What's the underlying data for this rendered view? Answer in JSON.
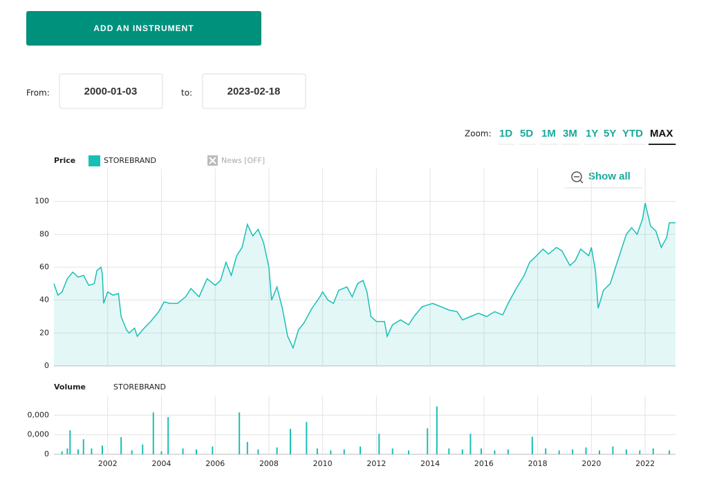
{
  "button": "ADD AN INSTRUMENT",
  "date_range": {
    "from_label": "From:",
    "from": "2000-01-03",
    "to_label": "to:",
    "to": "2023-02-18"
  },
  "zoom": {
    "label": "Zoom:",
    "options": [
      "1D",
      "5D",
      "1M",
      "3M",
      "1Y",
      "5Y",
      "YTD",
      "MAX"
    ],
    "active": 7
  },
  "chart_data": [
    {
      "type": "area",
      "title": "Price",
      "news": "News [OFF]",
      "reset": "Show all",
      "grid": true,
      "series": [
        {
          "name": "STOREBRAND",
          "color": "#17bfb5",
          "values": [
            50,
            43,
            45,
            53,
            57,
            54,
            55,
            49,
            50,
            58,
            60,
            56,
            38,
            45,
            43,
            44,
            30,
            22,
            20,
            23,
            18,
            22,
            27,
            33,
            39,
            38,
            38,
            42,
            47,
            42,
            53,
            49,
            52,
            63,
            55,
            67,
            72,
            86,
            79,
            83,
            75,
            60,
            40,
            48,
            35,
            18,
            11,
            22,
            26,
            35,
            42,
            45,
            40,
            38,
            46,
            48,
            42,
            50,
            52,
            45,
            30,
            27,
            27,
            18,
            25,
            28,
            25,
            30,
            36,
            37,
            38,
            36,
            34,
            33,
            28,
            30,
            32,
            30,
            33,
            31,
            38,
            47,
            55,
            63,
            66,
            71,
            68,
            72,
            70,
            61,
            64,
            71,
            67,
            72,
            58,
            35,
            46,
            50,
            60,
            70,
            80,
            84,
            80,
            89,
            99,
            85,
            82,
            72,
            78,
            87,
            87
          ]
        }
      ],
      "x": [
        2000.0,
        2000.15,
        2000.3,
        2000.5,
        2000.7,
        2000.9,
        2001.1,
        2001.3,
        2001.5,
        2001.6,
        2001.75,
        2001.8,
        2001.85,
        2002.0,
        2002.2,
        2002.4,
        2002.5,
        2002.7,
        2002.8,
        2003.0,
        2003.1,
        2003.3,
        2003.6,
        2003.9,
        2004.1,
        2004.3,
        2004.6,
        2004.9,
        2005.1,
        2005.4,
        2005.7,
        2006.0,
        2006.2,
        2006.4,
        2006.6,
        2006.8,
        2007.0,
        2007.2,
        2007.4,
        2007.6,
        2007.8,
        2008.0,
        2008.1,
        2008.3,
        2008.5,
        2008.7,
        2008.9,
        2009.1,
        2009.3,
        2009.6,
        2009.9,
        2010.0,
        2010.2,
        2010.4,
        2010.6,
        2010.9,
        2011.1,
        2011.3,
        2011.5,
        2011.65,
        2011.8,
        2012.0,
        2012.3,
        2012.4,
        2012.6,
        2012.9,
        2013.2,
        2013.4,
        2013.7,
        2013.9,
        2014.1,
        2014.4,
        2014.7,
        2015.0,
        2015.2,
        2015.5,
        2015.8,
        2016.1,
        2016.4,
        2016.7,
        2016.9,
        2017.2,
        2017.5,
        2017.7,
        2017.9,
        2018.2,
        2018.4,
        2018.7,
        2018.9,
        2019.2,
        2019.4,
        2019.6,
        2019.9,
        2020.0,
        2020.15,
        2020.25,
        2020.45,
        2020.7,
        2020.9,
        2021.1,
        2021.3,
        2021.5,
        2021.7,
        2021.9,
        2022.0,
        2022.2,
        2022.4,
        2022.6,
        2022.8,
        2022.9,
        2023.13
      ],
      "xlim": [
        2000,
        2023.13
      ],
      "xticks": [
        2002,
        2004,
        2006,
        2008,
        2010,
        2012,
        2014,
        2016,
        2018,
        2020,
        2022
      ],
      "ylim": [
        0,
        120
      ],
      "yticks": [
        0,
        20,
        40,
        60,
        80,
        100
      ]
    },
    {
      "type": "bar",
      "title": "Volume",
      "grid": true,
      "series": [
        {
          "name": "STOREBRAND",
          "color": "#17bfb5",
          "values": [
            1500000,
            3000000,
            12300000,
            2500000,
            7700000,
            3000000,
            4500000,
            8800000,
            2000000,
            5000000,
            21400000,
            1500000,
            19000000,
            3000000,
            2500000,
            4000000,
            21400000,
            6300000,
            2500000,
            3500000,
            13000000,
            16500000,
            3000000,
            2000000,
            2500000,
            4000000,
            10500000,
            3000000,
            2000000,
            13300000,
            24500000,
            3000000,
            2500000,
            10500000,
            3000000,
            2000000,
            2500000,
            9000000,
            3000000,
            2000000,
            2500000,
            3500000,
            2000000,
            4000000,
            2500000,
            2000000,
            3000000,
            2000000
          ]
        }
      ],
      "x": [
        2000.3,
        2000.5,
        2000.6,
        2000.9,
        2001.1,
        2001.4,
        2001.8,
        2002.5,
        2002.9,
        2003.3,
        2003.7,
        2004.0,
        2004.25,
        2004.8,
        2005.3,
        2005.9,
        2006.9,
        2007.2,
        2007.6,
        2008.3,
        2008.8,
        2009.4,
        2009.8,
        2010.3,
        2010.8,
        2011.4,
        2012.1,
        2012.6,
        2013.2,
        2013.9,
        2014.25,
        2014.7,
        2015.2,
        2015.5,
        2015.9,
        2016.4,
        2016.9,
        2017.8,
        2018.3,
        2018.8,
        2019.3,
        2019.8,
        2020.3,
        2020.8,
        2021.3,
        2021.8,
        2022.3,
        2022.9
      ],
      "xlim": [
        2000,
        2023.13
      ],
      "xticks": [
        2002,
        2004,
        2006,
        2008,
        2010,
        2012,
        2014,
        2016,
        2018,
        2020,
        2022
      ],
      "ylim": [
        0,
        30000000
      ],
      "yticks": [
        0,
        {
          "value": 10000000,
          "label": "0,000"
        },
        {
          "value": 20000000,
          "label": "0,000"
        }
      ]
    }
  ]
}
